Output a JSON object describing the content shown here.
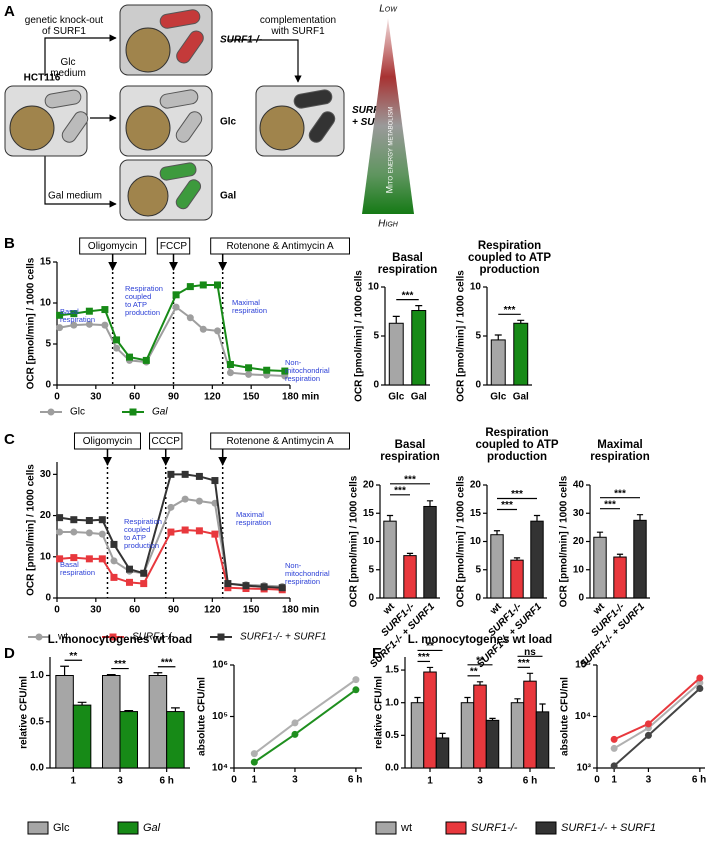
{
  "panel_a": {
    "letter": "A",
    "knockout": [
      "genetic knock-out",
      "of SURF1"
    ],
    "hct": "HCT116",
    "glc_medium": [
      "Glc",
      "medium"
    ],
    "gal_medium": "Gal medium",
    "surf1": "SURF1-/-",
    "glc": "Glc",
    "gal": "Gal",
    "complementation": [
      "complementation",
      "with SURF1"
    ],
    "surf1_comp": [
      "SURF1-/-",
      "+ SURF1"
    ],
    "low": "Low",
    "high": "High",
    "axis": "Mito energy metabolism"
  },
  "panel_letters": [
    "B",
    "C",
    "D",
    "E"
  ],
  "chart_data": [
    {
      "type": "line",
      "ylabel": "OCR [pmol/min] / 1000 cells",
      "x": [
        2,
        13,
        25,
        37,
        46,
        56,
        69,
        92,
        103,
        113,
        124,
        134,
        148,
        162,
        176
      ],
      "xlim": [
        0,
        180
      ],
      "xticks": [
        0,
        30,
        60,
        90,
        120,
        150,
        {
          "value": 180,
          "label": "180 min"
        }
      ],
      "ylim": [
        0,
        15
      ],
      "yticks": [
        0,
        5,
        10,
        15
      ],
      "series": [
        {
          "name": "Glc",
          "color": "#9e9e9e",
          "marker": "circle",
          "values": [
            7,
            7.3,
            7.4,
            7.3,
            4.5,
            3.0,
            2.8,
            9.5,
            8.2,
            6.8,
            6.6,
            1.5,
            1.3,
            1.2,
            1.1
          ]
        },
        {
          "name": "Gal",
          "color": "#178a17",
          "marker": "square",
          "values": [
            8.5,
            8.7,
            9,
            9.2,
            5.5,
            3.4,
            3,
            11,
            12,
            12.2,
            12.2,
            2.5,
            2.1,
            1.8,
            1.7
          ]
        }
      ],
      "injections": [
        {
          "label": "Oligomycin",
          "x": 43
        },
        {
          "label": "FCCP",
          "x": 90
        },
        {
          "label": "Rotenone & Antimycin  A",
          "x": 128
        }
      ],
      "annotations": [
        [
          "Basal",
          "respiration"
        ],
        [
          "Respiration",
          "coupled",
          "to ATP",
          "production"
        ],
        [
          "Maximal",
          "respiration"
        ],
        [
          "Non-",
          "mitochondrial",
          "respiration"
        ]
      ]
    },
    {
      "type": "bar",
      "title": [
        "Basal",
        "respiration"
      ],
      "ylabel": "OCR [pmol/min] / 1000 cells",
      "categories": [
        "Glc",
        "Gal"
      ],
      "values": [
        6.3,
        7.6
      ],
      "errors": [
        0.7,
        0.5
      ],
      "colors": [
        "#a6a6a6",
        "#178a17"
      ],
      "ylim": [
        0,
        10
      ],
      "yticks": [
        0,
        5,
        10
      ],
      "significance": [
        "***"
      ]
    },
    {
      "type": "bar",
      "title": [
        "Respiration",
        "coupled to ATP",
        "production"
      ],
      "ylabel": "OCR [pmol/min] / 1000 cells",
      "categories": [
        "Glc",
        "Gal"
      ],
      "values": [
        4.6,
        6.3
      ],
      "errors": [
        0.5,
        0.3
      ],
      "colors": [
        "#a6a6a6",
        "#178a17"
      ],
      "ylim": [
        0,
        10
      ],
      "yticks": [
        0,
        5,
        10
      ],
      "significance": [
        "***"
      ]
    },
    {
      "type": "line",
      "ylabel": "OCR [pmol/min] / 1000 cells",
      "x": [
        2,
        13,
        25,
        35,
        44,
        56,
        67,
        88,
        99,
        110,
        122,
        132,
        146,
        160,
        174
      ],
      "xlim": [
        0,
        180
      ],
      "xticks": [
        0,
        30,
        60,
        90,
        120,
        150,
        {
          "value": 180,
          "label": "180 min"
        }
      ],
      "ylim": [
        0,
        33
      ],
      "yticks": [
        0,
        10,
        20,
        30
      ],
      "series": [
        {
          "name": "wt",
          "color": "#a0a0a0",
          "marker": "circle",
          "values": [
            16,
            16,
            15.8,
            15.5,
            9,
            6.5,
            6,
            22,
            24,
            23.5,
            23,
            3.5,
            3.2,
            3,
            2.8
          ]
        },
        {
          "name": "SURF1-/-",
          "color": "#e8383d",
          "marker": "square",
          "values": [
            9.5,
            9.8,
            9.5,
            9.5,
            5,
            3.8,
            3.5,
            16,
            16.5,
            16.3,
            15.5,
            2.5,
            2.3,
            2.2,
            2
          ]
        },
        {
          "name": "SURF1-/- + SURF1",
          "color": "#333333",
          "marker": "square",
          "values": [
            19.5,
            19,
            18.8,
            19,
            13,
            7,
            6,
            30,
            30,
            29.5,
            28.5,
            3.5,
            3,
            2.7,
            2.5
          ]
        }
      ],
      "injections": [
        {
          "label": "Oligomycin",
          "x": 39
        },
        {
          "label": "CCCP",
          "x": 84
        },
        {
          "label": "Rotenone & Antimycin  A",
          "x": 128
        }
      ],
      "annotations": [
        [
          "Basal",
          "respiration"
        ],
        [
          "Respiration",
          "coupled",
          "to ATP",
          "production"
        ],
        [
          "Maximal",
          "respiration"
        ],
        [
          "Non-",
          "mitochondrial",
          "respiration"
        ]
      ]
    },
    {
      "type": "bar",
      "title": [
        "Basal",
        "respiration"
      ],
      "ylabel": "OCR [pmol/min] / 1000 cells",
      "categories": [
        "wt",
        "SURF1-/-",
        "SURF1-/- + SURF1"
      ],
      "values": [
        13.6,
        7.5,
        16.2
      ],
      "errors": [
        1,
        0.4,
        1
      ],
      "colors": [
        "#a6a6a6",
        "#e8383d",
        "#333333"
      ],
      "ylim": [
        0,
        20
      ],
      "yticks": [
        0,
        5,
        10,
        15,
        20
      ],
      "significance": [
        "***",
        "***"
      ]
    },
    {
      "type": "bar",
      "title": [
        "Respiration",
        "coupled to ATP",
        "production"
      ],
      "ylabel": "OCR [pmol/min] / 1000 cells",
      "categories": [
        "wt",
        "SURF1-/-",
        "SURF1-/- + SURF1"
      ],
      "values": [
        11.2,
        6.7,
        13.6
      ],
      "errors": [
        0.7,
        0.4,
        1
      ],
      "colors": [
        "#a6a6a6",
        "#e8383d",
        "#333333"
      ],
      "ylim": [
        0,
        20
      ],
      "yticks": [
        0,
        5,
        10,
        15,
        20
      ],
      "significance": [
        "***",
        "***"
      ]
    },
    {
      "type": "bar",
      "title": [
        "Maximal",
        "respiration"
      ],
      "ylabel": "OCR [pmol/min] / 1000 cells",
      "categories": [
        "wt",
        "SURF1-/-",
        "SURF1-/- + SURF1"
      ],
      "values": [
        21.5,
        14.5,
        27.5
      ],
      "errors": [
        1.8,
        1,
        2
      ],
      "colors": [
        "#a6a6a6",
        "#e8383d",
        "#333333"
      ],
      "ylim": [
        0,
        40
      ],
      "yticks": [
        0,
        10,
        20,
        30,
        40
      ],
      "significance": [
        "***",
        "***"
      ]
    },
    {
      "type": "bar",
      "title": [
        "L. monocytogenes wt load"
      ],
      "ylabel": "relative CFU/ml",
      "categories": [
        "1",
        "3",
        "6 h"
      ],
      "series": [
        {
          "name": "Glc",
          "color": "#a6a6a6",
          "values": [
            1,
            1,
            1
          ],
          "errors": [
            0.1,
            0.01,
            0.03
          ]
        },
        {
          "name": "Gal",
          "color": "#178a17",
          "values": [
            0.68,
            0.61,
            0.61
          ],
          "errors": [
            0.03,
            0.01,
            0.04
          ]
        }
      ],
      "ylim": [
        0,
        1.2
      ],
      "yticks": [
        {
          "value": 0,
          "label": "0.0"
        },
        {
          "value": 0.5,
          "label": "0.5"
        },
        {
          "value": 1,
          "label": "1.0"
        }
      ],
      "significance": [
        [
          "**"
        ],
        [
          "***"
        ],
        [
          "***"
        ]
      ]
    },
    {
      "type": "line",
      "log_y": true,
      "ylabel": "absolute CFU/ml",
      "x": [
        1,
        3,
        6
      ],
      "xlim": [
        0,
        6.3
      ],
      "xticks": [
        0,
        1,
        3,
        {
          "value": 6,
          "label": "6 h"
        }
      ],
      "ylim": [
        10000,
        1000000
      ],
      "yticks": [
        {
          "value": 10000,
          "label": "10⁴"
        },
        {
          "value": 100000,
          "label": "10⁵"
        },
        {
          "value": 1000000,
          "label": "10⁶"
        }
      ],
      "series": [
        {
          "color": "#b0b0b0",
          "marker": "circle",
          "values": [
            19000,
            75000,
            520000
          ]
        },
        {
          "color": "#1f8f1f",
          "marker": "circle",
          "values": [
            13000,
            45000,
            330000
          ]
        }
      ]
    },
    {
      "type": "bar",
      "title": [
        "L. monocytogenes wt load"
      ],
      "ylabel": "relative CFU/ml",
      "categories": [
        "1",
        "3",
        "6 h"
      ],
      "series": [
        {
          "name": "wt",
          "color": "#a6a6a6",
          "values": [
            1,
            1,
            1
          ],
          "errors": [
            0.08,
            0.08,
            0.06
          ]
        },
        {
          "name": "SURF1-/-",
          "color": "#e8383d",
          "values": [
            1.47,
            1.27,
            1.33
          ],
          "errors": [
            0.07,
            0.05,
            0.12
          ]
        },
        {
          "name": "SURF1-/- + SURF1",
          "color": "#333333",
          "values": [
            0.46,
            0.73,
            0.86
          ],
          "errors": [
            0.07,
            0.03,
            0.12
          ]
        }
      ],
      "ylim": [
        0,
        1.7
      ],
      "yticks": [
        {
          "value": 0,
          "label": "0.0"
        },
        {
          "value": 0.5,
          "label": "0.5"
        },
        {
          "value": 1,
          "label": "1.0"
        },
        {
          "value": 1.5,
          "label": "1.5"
        }
      ],
      "significance": [
        [
          "**",
          "***"
        ],
        [
          "**",
          "**"
        ],
        [
          "ns",
          "***"
        ]
      ]
    },
    {
      "type": "line",
      "log_y": true,
      "ylabel": "absolute CFU/ml",
      "x": [
        1,
        3,
        6
      ],
      "xlim": [
        0,
        6.3
      ],
      "xticks": [
        0,
        1,
        3,
        {
          "value": 6,
          "label": "6 h"
        }
      ],
      "ylim": [
        1000,
        100000
      ],
      "yticks": [
        {
          "value": 1000,
          "label": "10³"
        },
        {
          "value": 10000,
          "label": "10⁴"
        },
        {
          "value": 100000,
          "label": "10⁵"
        }
      ],
      "series": [
        {
          "color": "#b0b0b0",
          "marker": "circle",
          "values": [
            2400,
            6000,
            45000
          ]
        },
        {
          "color": "#e8383d",
          "marker": "circle",
          "values": [
            3600,
            7200,
            56000
          ]
        },
        {
          "color": "#444444",
          "marker": "circle",
          "values": [
            1100,
            4300,
            35000
          ]
        }
      ]
    }
  ]
}
